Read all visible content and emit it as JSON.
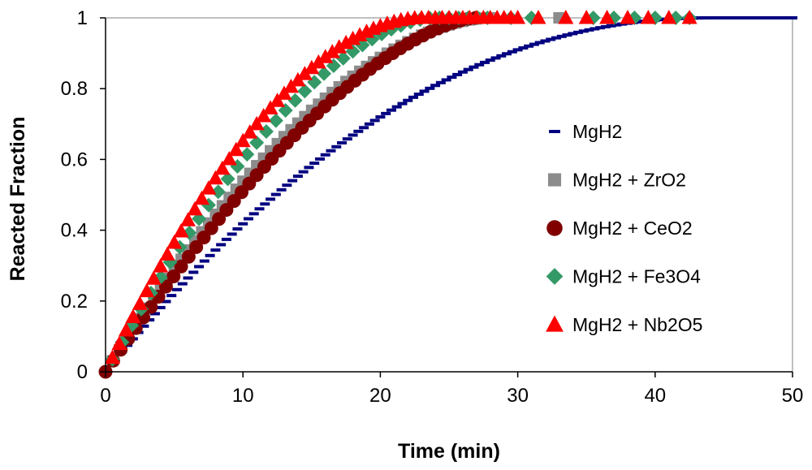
{
  "chart_data": {
    "type": "scatter",
    "title": "",
    "xlabel": "Time (min)",
    "ylabel": "Reacted Fraction",
    "xlim": [
      0,
      50
    ],
    "ylim": [
      0,
      1
    ],
    "xticks": [
      0,
      10,
      20,
      30,
      40,
      50
    ],
    "yticks": [
      0,
      0.2,
      0.4,
      0.6,
      0.8,
      1
    ],
    "ytick_labels": [
      "0",
      "0.2",
      "0.4",
      "0.6",
      "0.8",
      "1"
    ],
    "grid": false,
    "legend_position": "right",
    "series": [
      {
        "name": "MgH2",
        "marker": "dash",
        "color": "#000080",
        "curve": {
          "form": "1-(1-t/T)^n",
          "T": 44.0,
          "n": 2.1,
          "t_start": 1.2,
          "t_end": 50.0,
          "step": 0.4
        }
      },
      {
        "name": "MgH2 + ZrO2",
        "marker": "square",
        "color": "#8c8c8c",
        "curve": {
          "form": "1-(1-t/T)^n",
          "T": 28.0,
          "n": 1.75,
          "t_start": 0.5,
          "t_end": 28.0,
          "step": 0.5
        },
        "extra_points": [
          [
            33.0,
            1.0
          ]
        ]
      },
      {
        "name": "MgH2 + CeO2",
        "marker": "circle",
        "color": "#800000",
        "curve": {
          "form": "1-(1-t/T)^n",
          "T": 27.0,
          "n": 1.55,
          "t_start": 0.0,
          "t_end": 27.0,
          "step": 0.55
        }
      },
      {
        "name": "MgH2 + Fe3O4",
        "marker": "diamond",
        "color": "#339966",
        "curve": {
          "form": "1-(1-t/T)^n",
          "T": 24.0,
          "n": 1.7,
          "t_start": 0.5,
          "t_end": 28.0,
          "step": 0.7
        },
        "extra_points": [
          [
            29.5,
            1.0
          ],
          [
            31.0,
            1.0
          ],
          [
            35.5,
            1.0
          ],
          [
            37.0,
            1.0
          ],
          [
            38.5,
            1.0
          ],
          [
            40.0,
            1.0
          ],
          [
            41.5,
            1.0
          ],
          [
            42.5,
            1.0
          ]
        ]
      },
      {
        "name": "MgH2 + Nb2O5",
        "marker": "triangle",
        "color": "#ff0000",
        "curve": {
          "form": "1-(1-t/T)^n",
          "T": 23.0,
          "n": 1.85,
          "t_start": 0.5,
          "t_end": 30.0,
          "step": 0.5
        },
        "extra_points": [
          [
            31.5,
            1.0
          ],
          [
            33.5,
            1.0
          ],
          [
            35.0,
            1.0
          ],
          [
            36.5,
            1.0
          ],
          [
            38.0,
            1.0
          ],
          [
            39.5,
            1.0
          ],
          [
            41.0,
            1.0
          ],
          [
            42.5,
            1.0
          ]
        ]
      }
    ]
  }
}
